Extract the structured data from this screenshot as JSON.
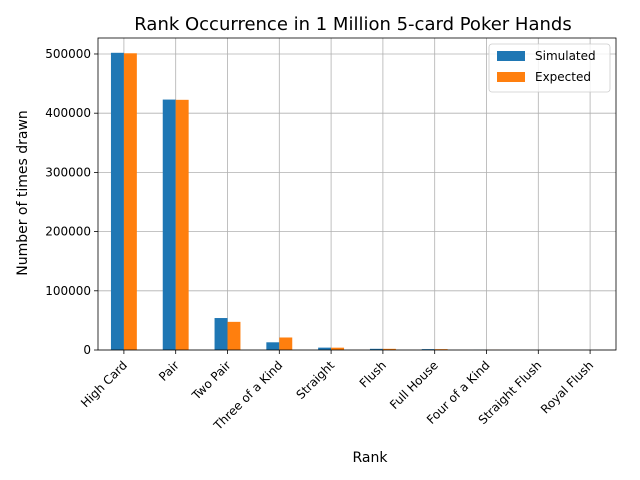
{
  "chart_data": {
    "type": "bar",
    "title": "Rank Occurrence in 1 Million 5-card Poker Hands",
    "xlabel": "Rank",
    "ylabel": "Number of times drawn",
    "categories": [
      "High Card",
      "Pair",
      "Two Pair",
      "Three of a Kind",
      "Straight",
      "Flush",
      "Full House",
      "Four of a Kind",
      "Straight Flush",
      "Royal Flush"
    ],
    "series": [
      {
        "name": "Simulated",
        "color": "#1f77b4",
        "values": [
          502000,
          423000,
          54000,
          13000,
          4000,
          2000,
          1500,
          250,
          15,
          2
        ]
      },
      {
        "name": "Expected",
        "color": "#ff7f0e",
        "values": [
          501209,
          422569,
          47539,
          21128,
          3925,
          1965,
          1441,
          240,
          14,
          2
        ]
      }
    ],
    "ylim": [
      0,
      527000
    ],
    "yticks": [
      0,
      100000,
      200000,
      300000,
      400000,
      500000
    ],
    "grid": true,
    "legend_position": "top-right"
  }
}
